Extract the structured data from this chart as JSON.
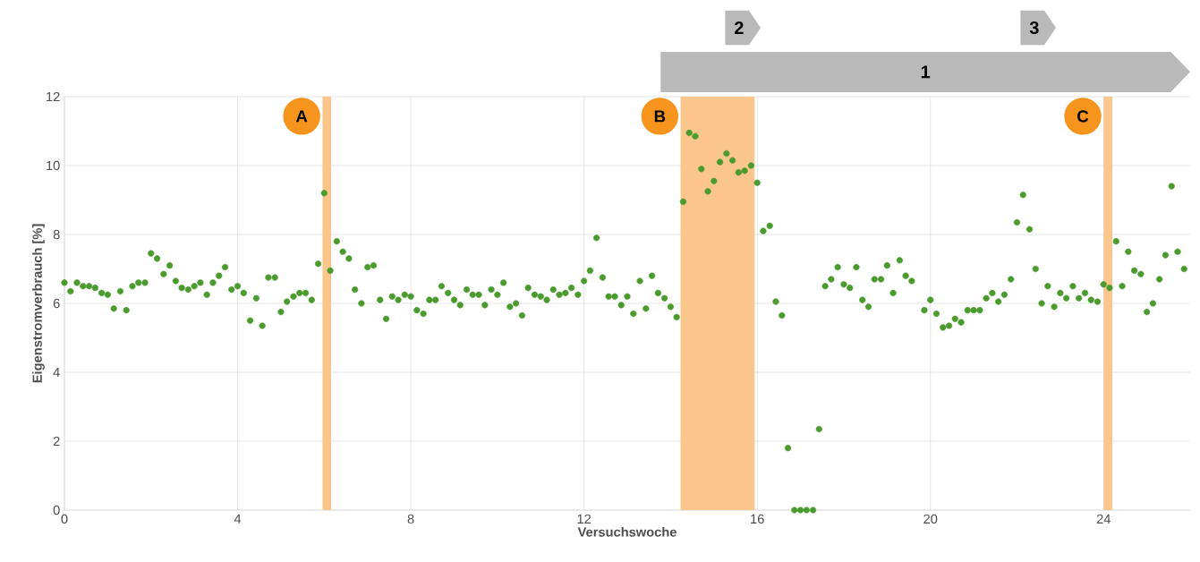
{
  "chart_data": {
    "type": "scatter",
    "xlabel": "Versuchswoche",
    "ylabel": "Eigenstromverbrauch [%]",
    "x": [
      0,
      0.14,
      0.29,
      0.43,
      0.57,
      0.71,
      0.86,
      1,
      1.14,
      1.29,
      1.43,
      1.57,
      1.71,
      1.86,
      2,
      2.14,
      2.29,
      2.43,
      2.57,
      2.71,
      2.86,
      3,
      3.14,
      3.29,
      3.43,
      3.57,
      3.71,
      3.86,
      4,
      4.14,
      4.29,
      4.43,
      4.57,
      4.71,
      4.86,
      5,
      5.14,
      5.29,
      5.43,
      5.57,
      5.71,
      5.86,
      6,
      6.14,
      6.29,
      6.43,
      6.57,
      6.71,
      6.86,
      7,
      7.14,
      7.29,
      7.43,
      7.57,
      7.71,
      7.86,
      8,
      8.14,
      8.29,
      8.43,
      8.57,
      8.71,
      8.86,
      9,
      9.14,
      9.29,
      9.43,
      9.57,
      9.71,
      9.86,
      10,
      10.14,
      10.29,
      10.43,
      10.57,
      10.71,
      10.86,
      11,
      11.14,
      11.29,
      11.43,
      11.57,
      11.71,
      11.86,
      12,
      12.14,
      12.29,
      12.43,
      12.57,
      12.71,
      12.86,
      13,
      13.14,
      13.29,
      13.43,
      13.57,
      13.71,
      13.86,
      14,
      14.14,
      14.29,
      14.43,
      14.57,
      14.71,
      14.86,
      15,
      15.14,
      15.29,
      15.43,
      15.57,
      15.71,
      15.86,
      16,
      16.14,
      16.29,
      16.43,
      16.57,
      16.71,
      16.86,
      17,
      17.14,
      17.29,
      17.43,
      17.57,
      17.71,
      17.86,
      18,
      18.14,
      18.29,
      18.43,
      18.57,
      18.71,
      18.86,
      19,
      19.14,
      19.29,
      19.43,
      19.57,
      19.86,
      20,
      20.14,
      20.29,
      20.43,
      20.57,
      20.71,
      20.86,
      21,
      21.14,
      21.29,
      21.43,
      21.57,
      21.71,
      21.86,
      22,
      22.14,
      22.29,
      22.43,
      22.57,
      22.71,
      22.86,
      23,
      23.14,
      23.29,
      23.43,
      23.57,
      23.71,
      23.86,
      24,
      24.14,
      24.29,
      24.43,
      24.57,
      24.71,
      24.86,
      25,
      25.14,
      25.29,
      25.43,
      25.57,
      25.71,
      25.86
    ],
    "series": [
      {
        "color": "#4a9a2e",
        "values": [
          6.6,
          6.35,
          6.6,
          6.5,
          6.5,
          6.45,
          6.3,
          6.25,
          5.85,
          6.35,
          5.8,
          6.5,
          6.6,
          6.6,
          7.45,
          7.3,
          6.85,
          7.1,
          6.65,
          6.45,
          6.4,
          6.5,
          6.6,
          6.25,
          6.6,
          6.8,
          7.05,
          6.4,
          6.5,
          6.3,
          5.5,
          6.15,
          5.35,
          6.75,
          6.75,
          5.75,
          6.05,
          6.2,
          6.3,
          6.3,
          6.1,
          7.15,
          9.2,
          6.95,
          7.8,
          7.5,
          7.3,
          6.4,
          6.0,
          7.05,
          7.1,
          6.1,
          5.55,
          6.2,
          6.1,
          6.25,
          6.2,
          5.8,
          5.7,
          6.1,
          6.1,
          6.5,
          6.3,
          6.1,
          5.95,
          6.4,
          6.25,
          6.25,
          5.95,
          6.4,
          6.25,
          6.6,
          5.9,
          6.0,
          5.65,
          6.45,
          6.25,
          6.2,
          6.1,
          6.4,
          6.25,
          6.3,
          6.45,
          6.25,
          6.65,
          6.95,
          7.9,
          6.75,
          6.2,
          6.2,
          5.95,
          6.2,
          5.7,
          6.65,
          5.85,
          6.8,
          6.3,
          6.15,
          5.9,
          5.6,
          8.95,
          10.95,
          10.85,
          9.9,
          9.25,
          9.55,
          10.1,
          10.35,
          10.15,
          9.8,
          9.85,
          10.0,
          9.5,
          8.1,
          8.25,
          6.05,
          5.65,
          1.8,
          0,
          0,
          0,
          0,
          2.35,
          6.5,
          6.7,
          7.05,
          6.55,
          6.45,
          7.05,
          6.1,
          5.9,
          6.7,
          6.7,
          7.1,
          6.3,
          7.25,
          6.8,
          6.65,
          5.8,
          6.1,
          5.7,
          5.3,
          5.35,
          5.55,
          5.45,
          5.8,
          5.8,
          5.8,
          6.15,
          6.3,
          6.05,
          6.25,
          6.7,
          8.35,
          9.15,
          8.15,
          7.0,
          6.0,
          6.5,
          5.9,
          6.3,
          6.15,
          6.5,
          6.15,
          6.3,
          6.1,
          6.05,
          6.55,
          6.45,
          7.8,
          6.5,
          7.5,
          6.95,
          6.85,
          5.75,
          6.0,
          6.7,
          7.4,
          9.4,
          7.5,
          7.0
        ]
      }
    ],
    "marker": "circle",
    "grid": true,
    "xlim": [
      0,
      26
    ],
    "ylim": [
      0,
      12
    ],
    "xticks": [
      0,
      4,
      8,
      12,
      16,
      20,
      24
    ],
    "yticks": [
      0,
      2,
      4,
      6,
      8,
      10,
      12
    ],
    "bands": [
      {
        "axis": "x",
        "from": 5.96,
        "to": 6.16,
        "label": "A",
        "color": "#fbc68c"
      },
      {
        "axis": "x",
        "from": 14.23,
        "to": 15.94,
        "label": "B",
        "color": "#fbc68c"
      },
      {
        "axis": "x",
        "from": 24.0,
        "to": 24.2,
        "label": "C",
        "color": "#fbc68c"
      }
    ],
    "annotations": [
      "1",
      "2",
      "3"
    ]
  }
}
